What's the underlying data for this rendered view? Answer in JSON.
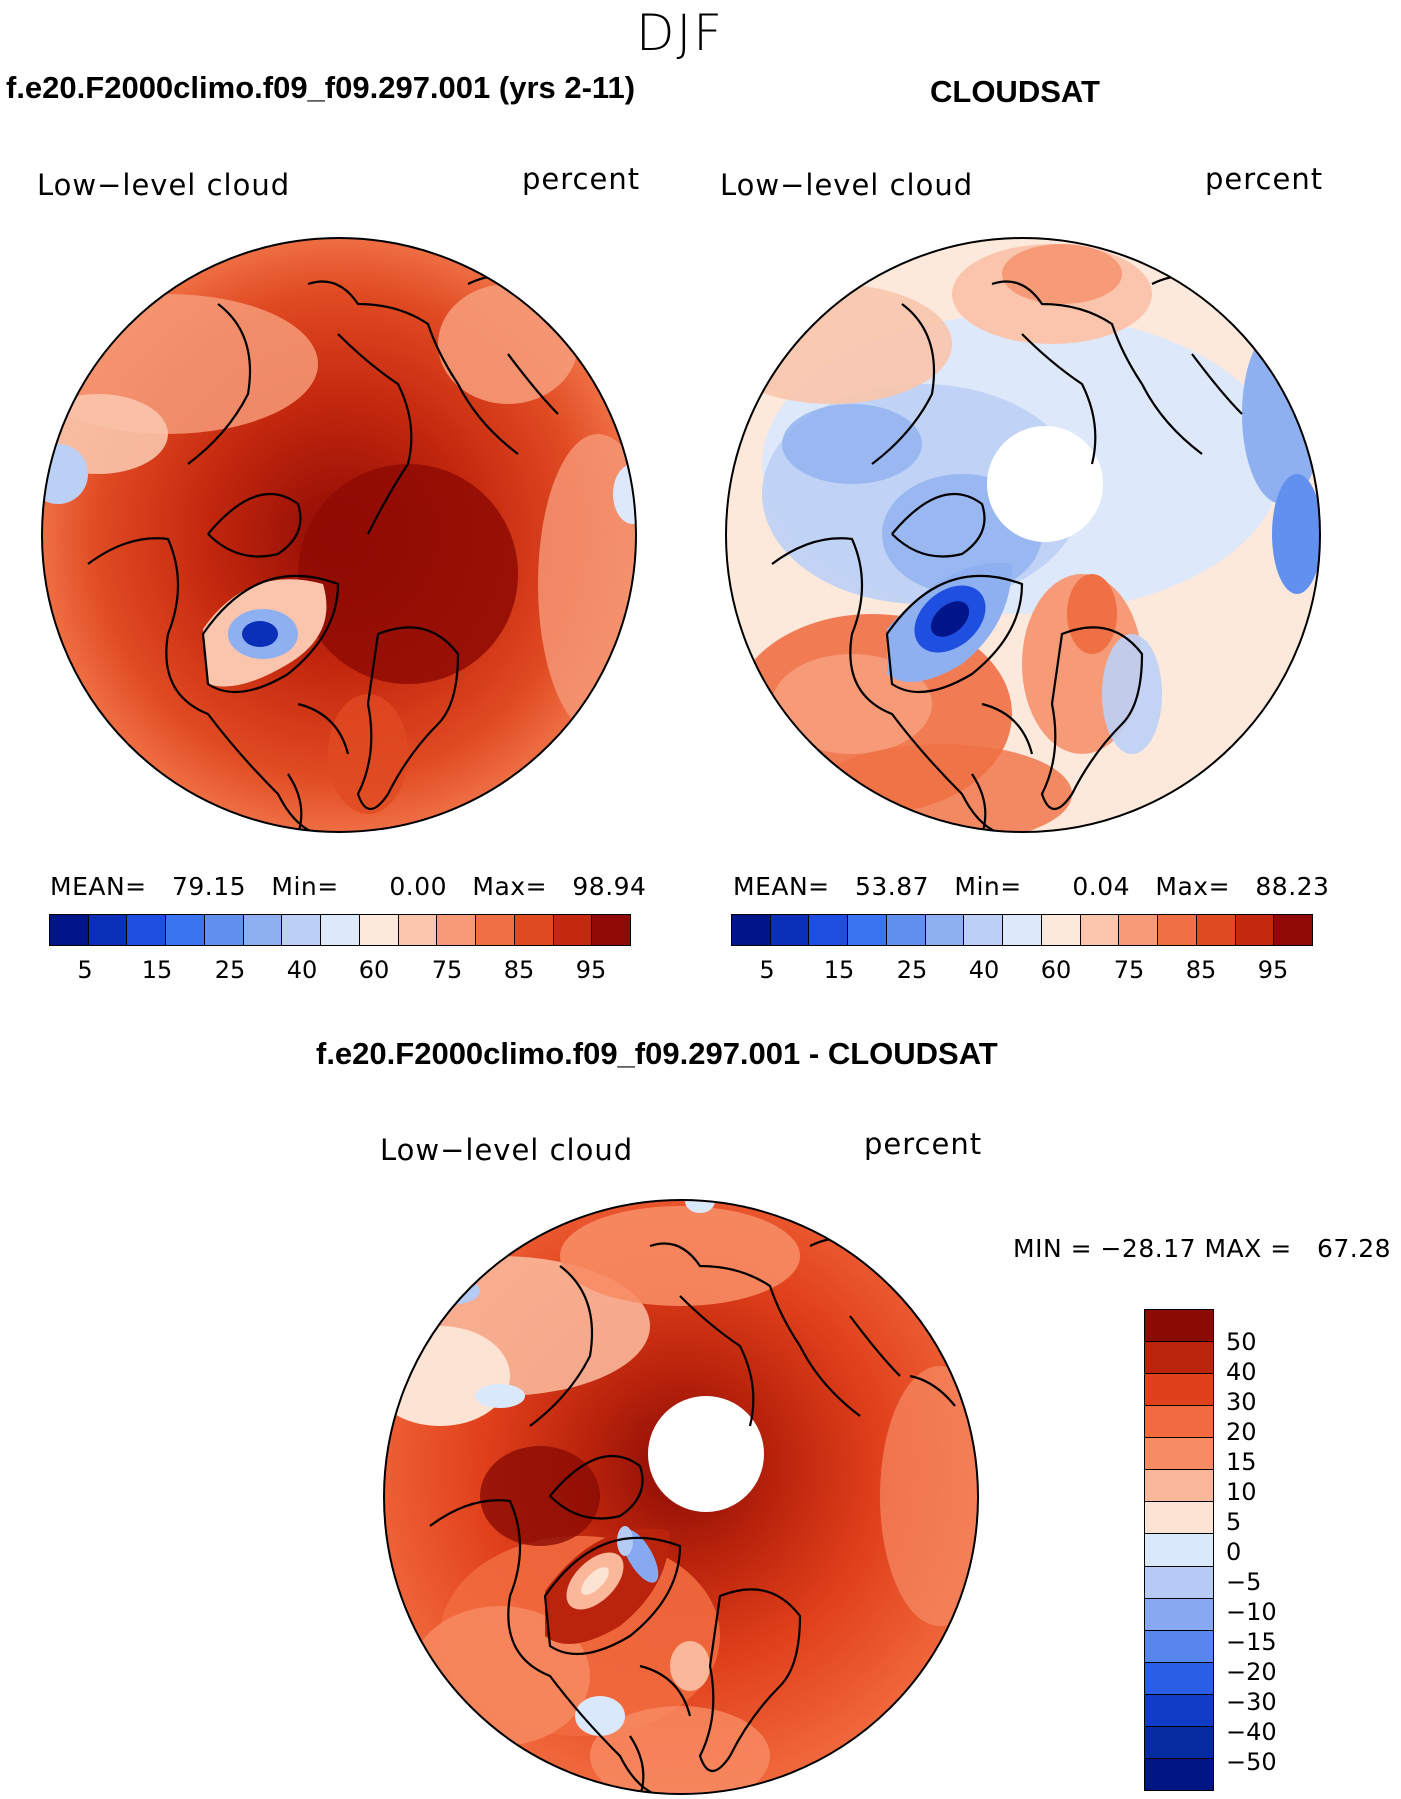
{
  "season": "DJF",
  "panels": [
    {
      "title": "f.e20.F2000climo.f09_f09.297.001 (yrs 2-11)",
      "left_label": "Low−level cloud",
      "right_label": "percent",
      "stats": {
        "mean_label": "MEAN=",
        "mean": "79.15",
        "min_label": "Min=",
        "min": "0.00",
        "max_label": "Max=",
        "max": "98.94"
      },
      "colorbar_ticks": [
        "5",
        "15",
        "25",
        "40",
        "60",
        "75",
        "85",
        "95"
      ]
    },
    {
      "title": "CLOUDSAT",
      "left_label": "Low−level cloud",
      "right_label": "percent",
      "stats": {
        "mean_label": "MEAN=",
        "mean": "53.87",
        "min_label": "Min=",
        "min": "0.04",
        "max_label": "Max=",
        "max": "88.23"
      },
      "colorbar_ticks": [
        "5",
        "15",
        "25",
        "40",
        "60",
        "75",
        "85",
        "95"
      ]
    },
    {
      "title": "f.e20.F2000climo.f09_f09.297.001 - CLOUDSAT",
      "left_label": "Low−level cloud",
      "right_label": "percent",
      "stats_text": "MIN = −28.17 MAX =   67.28",
      "colorbar_ticks": [
        "50",
        "40",
        "30",
        "20",
        "15",
        "10",
        "5",
        "0",
        "−5",
        "−10",
        "−15",
        "−20",
        "−30",
        "−40",
        "−50"
      ]
    }
  ],
  "colors": {
    "field_palette": [
      "#00158a",
      "#0a2fb8",
      "#1f4fe0",
      "#3b74f0",
      "#6190ee",
      "#8fb0f0",
      "#bcd0f5",
      "#dde9fa",
      "#fde8dc",
      "#fac5ac",
      "#f69a78",
      "#f07045",
      "#e04a22",
      "#c4280e",
      "#8f0a04"
    ],
    "diff_palette_top_to_bottom": [
      "#8a0b04",
      "#bb240c",
      "#e0401b",
      "#f26a3f",
      "#f78c64",
      "#fab79a",
      "#fde3d4",
      "#d9e8fb",
      "#b5cbf5",
      "#86a9f1",
      "#5686ee",
      "#2a5ee6",
      "#103cc8",
      "#062aa0",
      "#001684"
    ],
    "coastline": "#000000"
  }
}
